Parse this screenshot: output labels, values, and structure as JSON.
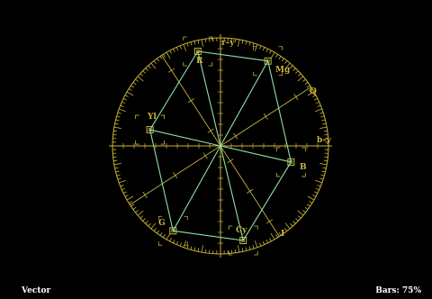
{
  "scope": {
    "mode_label": "Vector",
    "bars_readout": "Bars: 75%",
    "graticule_color": "#c8b43a",
    "trace_color": "#8fe0a8",
    "axis_labels": {
      "r_y": "r–y",
      "b_y": "b–y",
      "q": "Q",
      "i": "I"
    },
    "targets": [
      {
        "label": "R",
        "angle_deg": 103.5,
        "radius_frac": 0.9
      },
      {
        "label": "Mg",
        "angle_deg": 60.8,
        "radius_frac": 0.9
      },
      {
        "label": "B",
        "angle_deg": 347.1,
        "radius_frac": 0.67
      },
      {
        "label": "Cy",
        "angle_deg": 283.5,
        "radius_frac": 0.9
      },
      {
        "label": "G",
        "angle_deg": 240.8,
        "radius_frac": 0.9
      },
      {
        "label": "Yl",
        "angle_deg": 167.1,
        "radius_frac": 0.67
      }
    ]
  }
}
